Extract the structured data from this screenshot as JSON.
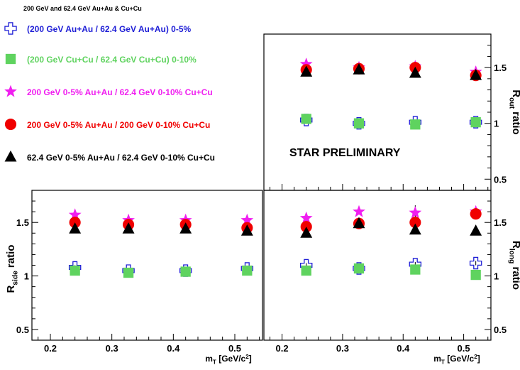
{
  "chart_data": [
    {
      "panel": "out",
      "type": "scatter",
      "title": "200 GeV and 62.4 GeV Au+Au & Cu+Cu",
      "annotation": "STAR PRELIMINARY",
      "ylabel": {
        "main": "R",
        "sub": "out",
        "suffix": " ratio"
      },
      "ylim": [
        0.4,
        1.8
      ],
      "yticks": [
        "0.5",
        "1",
        "1.5"
      ],
      "x": [
        0.24,
        0.327,
        0.42,
        0.52
      ],
      "series": [
        {
          "name": "(200 GeV Au+Au / 62.4 GeV Au+Au) 0-5%",
          "marker": "open-cross",
          "color": "#1f1fd6",
          "values": [
            1.03,
            1.0,
            1.01,
            1.01
          ],
          "errors": [
            0.02,
            0.02,
            0.02,
            0.02
          ]
        },
        {
          "name": "(200 GeV Cu+Cu / 62.4 GeV Cu+Cu) 0-10%",
          "marker": "square",
          "color": "#5fd35f",
          "values": [
            1.04,
            1.0,
            0.99,
            1.01
          ],
          "errors": [
            0.02,
            0.02,
            0.02,
            0.02
          ]
        },
        {
          "name": "200 GeV 0-5% Au+Au / 62.4 GeV 0-10% Cu+Cu",
          "marker": "star",
          "color": "#f01ef0",
          "values": [
            1.53,
            1.5,
            1.51,
            1.46
          ],
          "errors": [
            0.05,
            0.04,
            0.04,
            0.05
          ]
        },
        {
          "name": "200 GeV 0-5% Au+Au / 200 GeV 0-10% Cu+Cu",
          "marker": "circle",
          "color": "#f00000",
          "values": [
            1.48,
            1.49,
            1.5,
            1.43
          ],
          "errors": [
            0.03,
            0.03,
            0.03,
            0.04
          ]
        },
        {
          "name": "62.4 GeV 0-5% Au+Au / 62.4 GeV 0-10% Cu+Cu",
          "marker": "triangle",
          "color": "#000000",
          "values": [
            1.46,
            1.48,
            1.45,
            1.43
          ],
          "errors": [
            0.02,
            0.02,
            0.02,
            0.02
          ]
        }
      ]
    },
    {
      "panel": "side",
      "type": "scatter",
      "ylabel": {
        "main": "R",
        "sub": "side",
        "suffix": " ratio"
      },
      "xlabel": {
        "main": "m",
        "sub": "T",
        "suffix": " [GeV/c",
        "sup": "2",
        "end": "]"
      },
      "xlim": [
        0.17,
        0.545
      ],
      "ylim": [
        0.4,
        1.8
      ],
      "xticks": [
        "0.2",
        "0.3",
        "0.4",
        "0.5"
      ],
      "yticks": [
        "0.5",
        "1",
        "1.5"
      ],
      "x": [
        0.24,
        0.327,
        0.42,
        0.52
      ],
      "series": [
        {
          "marker": "open-cross",
          "color": "#1f1fd6",
          "values": [
            1.08,
            1.05,
            1.05,
            1.07
          ],
          "errors": [
            0.02,
            0.02,
            0.02,
            0.02
          ]
        },
        {
          "marker": "square",
          "color": "#5fd35f",
          "values": [
            1.05,
            1.03,
            1.04,
            1.05
          ],
          "errors": [
            0.02,
            0.02,
            0.02,
            0.02
          ]
        },
        {
          "marker": "star",
          "color": "#f01ef0",
          "values": [
            1.57,
            1.52,
            1.52,
            1.52
          ],
          "errors": [
            0.02,
            0.02,
            0.03,
            0.03
          ]
        },
        {
          "marker": "circle",
          "color": "#f00000",
          "values": [
            1.5,
            1.48,
            1.48,
            1.45
          ],
          "errors": [
            0.02,
            0.02,
            0.02,
            0.02
          ]
        },
        {
          "marker": "triangle",
          "color": "#000000",
          "values": [
            1.44,
            1.44,
            1.44,
            1.42
          ],
          "errors": [
            0.02,
            0.02,
            0.02,
            0.02
          ]
        }
      ]
    },
    {
      "panel": "long",
      "type": "scatter",
      "ylabel": {
        "main": "R",
        "sub": "long",
        "suffix": " ratio"
      },
      "xlabel": {
        "main": "m",
        "sub": "T",
        "suffix": " [GeV/c",
        "sup": "2",
        "end": "]"
      },
      "xlim": [
        0.17,
        0.545
      ],
      "ylim": [
        0.4,
        1.8
      ],
      "xticks": [
        "0.2",
        "0.3",
        "0.4",
        "0.5"
      ],
      "yticks": [
        "0.5",
        "1",
        "1.5"
      ],
      "x": [
        0.24,
        0.327,
        0.42,
        0.52
      ],
      "series": [
        {
          "marker": "open-cross",
          "color": "#1f1fd6",
          "values": [
            1.1,
            1.07,
            1.11,
            1.12
          ],
          "errors": [
            0.02,
            0.02,
            0.02,
            0.02
          ]
        },
        {
          "marker": "square",
          "color": "#5fd35f",
          "values": [
            1.05,
            1.07,
            1.06,
            1.01
          ],
          "errors": [
            0.02,
            0.02,
            0.02,
            0.02
          ]
        },
        {
          "marker": "star",
          "color": "#f01ef0",
          "values": [
            1.54,
            1.6,
            1.59,
            1.6
          ],
          "errors": [
            0.02,
            0.02,
            0.07,
            0.05
          ]
        },
        {
          "marker": "circle",
          "color": "#f00000",
          "values": [
            1.46,
            1.49,
            1.5,
            1.58
          ],
          "errors": [
            0.03,
            0.03,
            0.05,
            0.05
          ]
        },
        {
          "marker": "triangle",
          "color": "#000000",
          "values": [
            1.4,
            1.49,
            1.43,
            1.42
          ],
          "errors": [
            0.02,
            0.02,
            0.02,
            0.02
          ]
        }
      ]
    }
  ]
}
